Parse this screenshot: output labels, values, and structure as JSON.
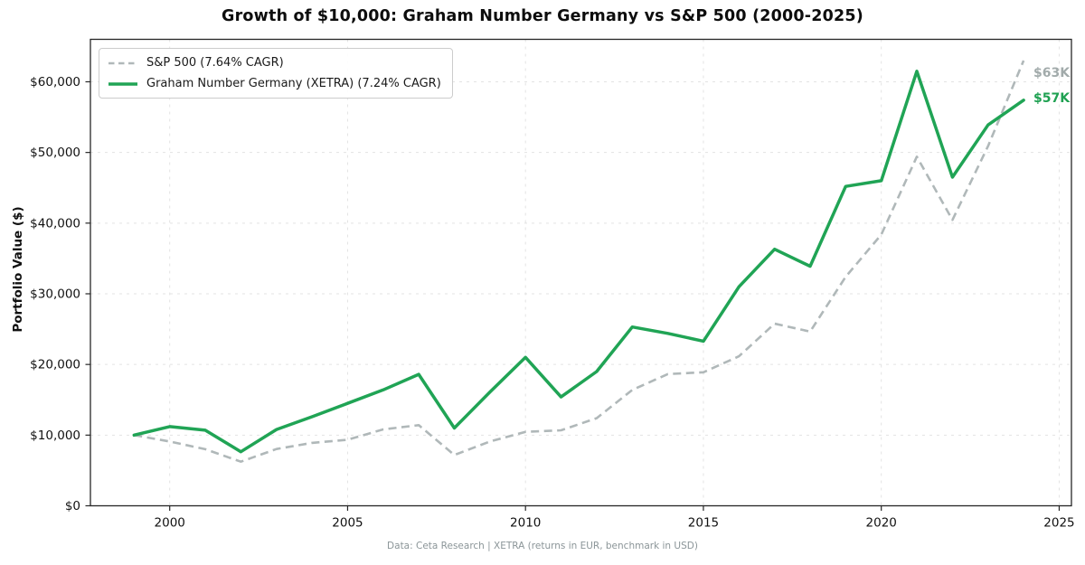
{
  "title": "Growth of $10,000: Graham Number Germany vs S&P 500 (2000-2025)",
  "footer": "Data: Ceta Research | XETRA (returns in EUR, benchmark in USD)",
  "y_axis_label": "Portfolio Value ($)",
  "legend": {
    "items": [
      {
        "label": "S&P 500 (7.64% CAGR)",
        "color": "#b0b8b9",
        "style": "dashed"
      },
      {
        "label": "Graham Number Germany (XETRA) (7.24% CAGR)",
        "color": "#20a455",
        "style": "solid"
      }
    ]
  },
  "end_labels": [
    {
      "text": "$63K",
      "color": "#a2abab",
      "series": "S&P 500"
    },
    {
      "text": "$57K",
      "color": "#1fa152",
      "series": "Graham Number Germany (XETRA)"
    }
  ],
  "chart_data": {
    "type": "line",
    "x": [
      1999,
      2000,
      2001,
      2002,
      2003,
      2004,
      2005,
      2006,
      2007,
      2008,
      2009,
      2010,
      2011,
      2012,
      2013,
      2014,
      2015,
      2016,
      2017,
      2018,
      2019,
      2020,
      2021,
      2022,
      2023,
      2024
    ],
    "series": [
      {
        "name": "S&P 500 (7.64% CAGR)",
        "color": "#b0b8b9",
        "dashed": true,
        "values": [
          10000,
          9090,
          8010,
          6240,
          8030,
          8900,
          9340,
          10810,
          11410,
          7190,
          9090,
          10460,
          10680,
          12390,
          16400,
          18640,
          18900,
          21160,
          25780,
          24650,
          32410,
          38380,
          49400,
          40450,
          50900,
          63000
        ]
      },
      {
        "name": "Graham Number Germany (XETRA) (7.24% CAGR)",
        "color": "#20a455",
        "dashed": false,
        "values": [
          10000,
          11200,
          10700,
          7650,
          10800,
          12600,
          14500,
          16400,
          18600,
          11000,
          16100,
          21000,
          15400,
          19000,
          25300,
          24400,
          23300,
          31000,
          36300,
          33900,
          45200,
          46000,
          61500,
          46500,
          53900,
          57400
        ]
      }
    ],
    "x_ticks": [
      {
        "value": 2000,
        "label": "2000"
      },
      {
        "value": 2005,
        "label": "2005"
      },
      {
        "value": 2010,
        "label": "2010"
      },
      {
        "value": 2015,
        "label": "2015"
      },
      {
        "value": 2020,
        "label": "2020"
      },
      {
        "value": 2025,
        "label": "2025"
      }
    ],
    "y_ticks": [
      {
        "value": 0,
        "label": "$0"
      },
      {
        "value": 10000,
        "label": "$10,000"
      },
      {
        "value": 20000,
        "label": "$20,000"
      },
      {
        "value": 30000,
        "label": "$30,000"
      },
      {
        "value": 40000,
        "label": "$40,000"
      },
      {
        "value": 50000,
        "label": "$50,000"
      },
      {
        "value": 60000,
        "label": "$60,000"
      }
    ],
    "xlim": [
      1997.8,
      2025.3
    ],
    "ylim": [
      0,
      66000
    ],
    "grid": true,
    "legend_position": "upper left"
  }
}
